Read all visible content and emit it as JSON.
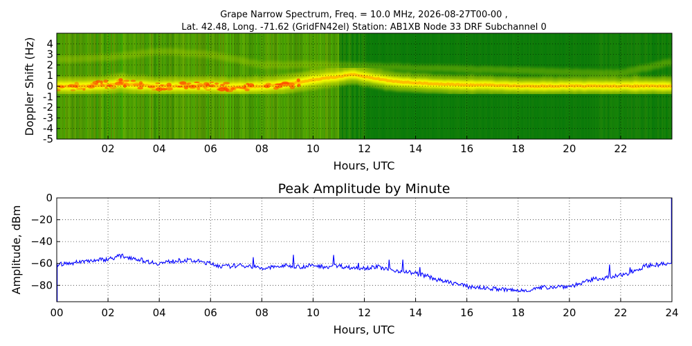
{
  "title_line1": "Grape Narrow Spectrum, Freq. = 10.0 MHz, 2026-08-27T00-00 ,",
  "title_line2": "Lat.  42.48, Long. -71.62 (GridFN42el) Station: AB1XB Node 33 DRF Subchannel 0",
  "colors": {
    "spectrum_bg": "#0a7a0a",
    "trace": "#0000ff",
    "carrier": "#ffff00",
    "hot": "#ff4000"
  },
  "chart_data": [
    {
      "type": "heatmap",
      "title": "",
      "xlabel": "Hours, UTC",
      "ylabel": "Doppler Shift (Hz)",
      "xlim": [
        0,
        24
      ],
      "ylim": [
        -5,
        5
      ],
      "xticks": [
        2,
        4,
        6,
        8,
        10,
        12,
        14,
        16,
        18,
        20,
        22
      ],
      "xtick_labels": [
        "02",
        "04",
        "06",
        "08",
        "10",
        "12",
        "14",
        "16",
        "18",
        "20",
        "22"
      ],
      "yticks": [
        -5,
        -4,
        -3,
        -2,
        -1,
        0,
        1,
        2,
        3,
        4
      ],
      "ytick_labels": [
        "-5",
        "-4",
        "-3",
        "-2",
        "-1",
        "0",
        "1",
        "2",
        "3",
        "4"
      ],
      "grid": true,
      "carrier_trace": {
        "hours": [
          0,
          1,
          2,
          2.5,
          3,
          4,
          5,
          6,
          7,
          8,
          9,
          10,
          11,
          11.5,
          12,
          13,
          14,
          15,
          16,
          17,
          18,
          19,
          20,
          21,
          22,
          23,
          24
        ],
        "doppler_hz": [
          0,
          0,
          0.1,
          0.3,
          0.1,
          0,
          0,
          0,
          -0.1,
          0,
          0.2,
          0.6,
          0.9,
          1.1,
          0.9,
          0.5,
          0.3,
          0.2,
          0.1,
          0.1,
          0,
          0,
          0,
          0,
          0,
          0,
          0
        ]
      },
      "upper_trace": {
        "hours": [
          0,
          2,
          4,
          6,
          8,
          10,
          22,
          24
        ],
        "doppler_hz": [
          2.5,
          2.7,
          3.3,
          3.0,
          2.0,
          2.0,
          1.2,
          2.3
        ]
      }
    },
    {
      "type": "line",
      "title": "Peak Amplitude by Minute",
      "xlabel": "Hours, UTC",
      "ylabel": "Amplitude, dBm",
      "xlim": [
        0,
        24
      ],
      "ylim": [
        -95,
        0
      ],
      "xticks": [
        0,
        2,
        4,
        6,
        8,
        10,
        12,
        14,
        16,
        18,
        20,
        22,
        24
      ],
      "xtick_labels": [
        "00",
        "02",
        "04",
        "06",
        "08",
        "10",
        "12",
        "14",
        "16",
        "18",
        "20",
        "22",
        "24"
      ],
      "yticks": [
        0,
        -20,
        -40,
        -60,
        -80
      ],
      "ytick_labels": [
        "0",
        "−20",
        "−40",
        "−60",
        "−80"
      ],
      "grid": true,
      "series": [
        {
          "x": [
            0,
            0.5,
            1,
            1.5,
            2,
            2.5,
            3,
            3.5,
            4,
            4.5,
            5,
            5.5,
            6,
            6.5,
            7,
            7.5,
            8,
            8.5,
            9,
            9.5,
            10,
            10.5,
            11,
            11.5,
            12,
            12.5,
            13,
            13.5,
            14,
            14.5,
            15,
            15.5,
            16,
            16.5,
            17,
            17.5,
            18,
            18.5,
            19,
            19.5,
            20,
            20.5,
            21,
            21.5,
            22,
            22.5,
            23,
            23.5,
            24
          ],
          "y": [
            -61,
            -60,
            -58,
            -57,
            -56,
            -53,
            -55,
            -58,
            -60,
            -58,
            -57,
            -58,
            -60,
            -63,
            -62,
            -62,
            -65,
            -63,
            -62,
            -63,
            -62,
            -63,
            -62,
            -64,
            -64,
            -63,
            -66,
            -67,
            -69,
            -72,
            -76,
            -78,
            -81,
            -82,
            -83,
            -84,
            -85,
            -84,
            -82,
            -81,
            -81,
            -78,
            -74,
            -73,
            -71,
            -67,
            -62,
            -61,
            -60
          ]
        }
      ]
    }
  ]
}
